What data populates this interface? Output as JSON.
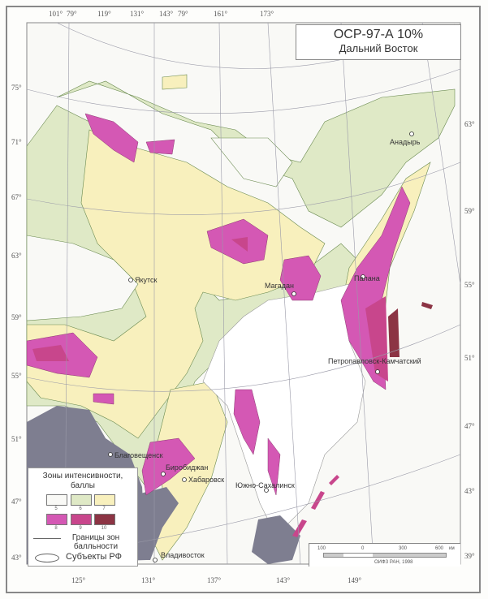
{
  "title": {
    "line1": "ОСР-97-А 10%",
    "line2": "Дальний Восток"
  },
  "top_longitudes": [
    "101°",
    "79°",
    "119°",
    "131°",
    "143°",
    "79°",
    "161°",
    "173°"
  ],
  "left_latitudes": [
    "75°",
    "71°",
    "67°",
    "63°",
    "59°",
    "55°",
    "51°",
    "47°",
    "43°"
  ],
  "right_latitudes": [
    "63°",
    "59°",
    "55°",
    "51°",
    "47°",
    "43°",
    "39°"
  ],
  "bottom_longitudes": [
    "125°",
    "131°",
    "137°",
    "143°",
    "149°"
  ],
  "cities": [
    "Анадырь",
    "Якутск",
    "Магадан",
    "Палана",
    "Петропавловск-Камчатский",
    "Благовещенск",
    "Биробиджан",
    "Хабаровск",
    "Южно-Сахалинск",
    "Владивосток"
  ],
  "legend": {
    "title": "Зоны интенсивности, баллы",
    "zones": [
      {
        "value": "5",
        "color": "#f9f9f6"
      },
      {
        "value": "6",
        "color": "#dfe9c6"
      },
      {
        "value": "7",
        "color": "#f8f0bd"
      },
      {
        "value": "8",
        "color": "#d458b4"
      },
      {
        "value": "9",
        "color": "#c8468c"
      },
      {
        "value": "10",
        "color": "#8c3444"
      }
    ],
    "boundary_label": "Границы зон балльности",
    "subject_label": "Субъекты РФ"
  },
  "scale": {
    "ticks": [
      "100",
      "0",
      "300",
      "600"
    ],
    "unit": "км"
  },
  "copyright": "ОИФЗ РАН, 1998",
  "colors": {
    "foreign_land": "#7e7e90",
    "sea": "#ffffff"
  }
}
